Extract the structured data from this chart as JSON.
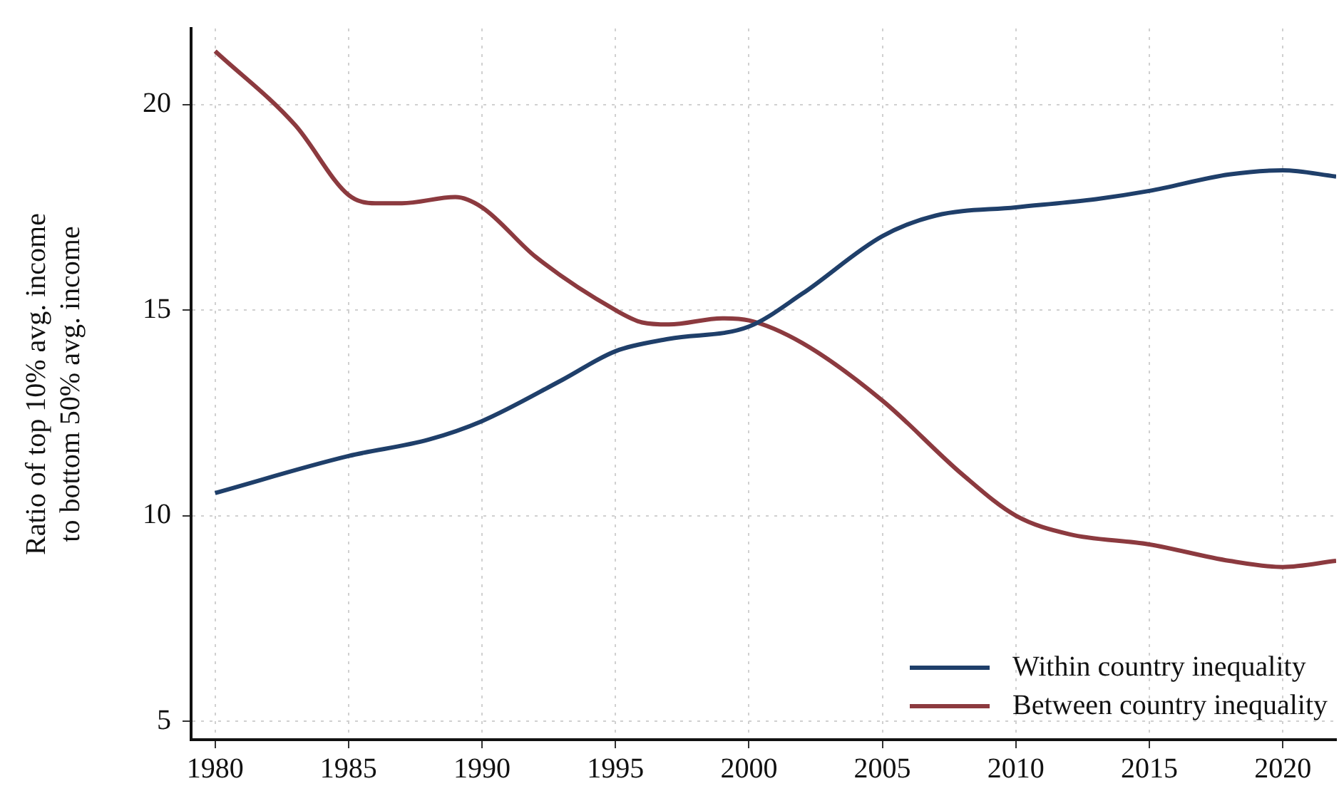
{
  "chart_data": {
    "type": "line",
    "ylabel": "Ratio of top 10% avg. income\nto bottom 50% avg. income",
    "xlim": [
      1979.1,
      2022
    ],
    "xticks": [
      1980,
      1985,
      1990,
      1995,
      2000,
      2005,
      2010,
      2015,
      2020
    ],
    "ylim": [
      4.55,
      21.85
    ],
    "yticks": [
      5,
      10,
      15,
      20
    ],
    "grid": true,
    "line_style": "solid",
    "marker": "none",
    "legend": "bottom right",
    "series": [
      {
        "name": "Within country inequality",
        "color": "#1f3f6a",
        "x": [
          1980,
          1985,
          1988,
          1990,
          1993,
          1995,
          1997,
          2000,
          2002,
          2005,
          2007,
          2010,
          2013,
          2015,
          2018,
          2020,
          2022
        ],
        "values": [
          10.55,
          11.45,
          11.85,
          12.3,
          13.3,
          14.0,
          14.3,
          14.6,
          15.4,
          16.8,
          17.3,
          17.5,
          17.7,
          17.9,
          18.3,
          18.4,
          18.25
        ]
      },
      {
        "name": "Between country inequality",
        "color": "#8c3a3f",
        "x": [
          1980,
          1983,
          1985,
          1986,
          1987,
          1989,
          1990,
          1992,
          1995,
          1996,
          1997,
          1999,
          2000,
          2002,
          2005,
          2008,
          2010,
          2012,
          2015,
          2018,
          2020,
          2022
        ],
        "values": [
          21.3,
          19.5,
          17.8,
          17.6,
          17.6,
          17.75,
          17.5,
          16.3,
          15.0,
          14.7,
          14.65,
          14.8,
          14.75,
          14.2,
          12.8,
          11.0,
          10.0,
          9.55,
          9.3,
          8.9,
          8.75,
          8.9
        ]
      }
    ]
  }
}
